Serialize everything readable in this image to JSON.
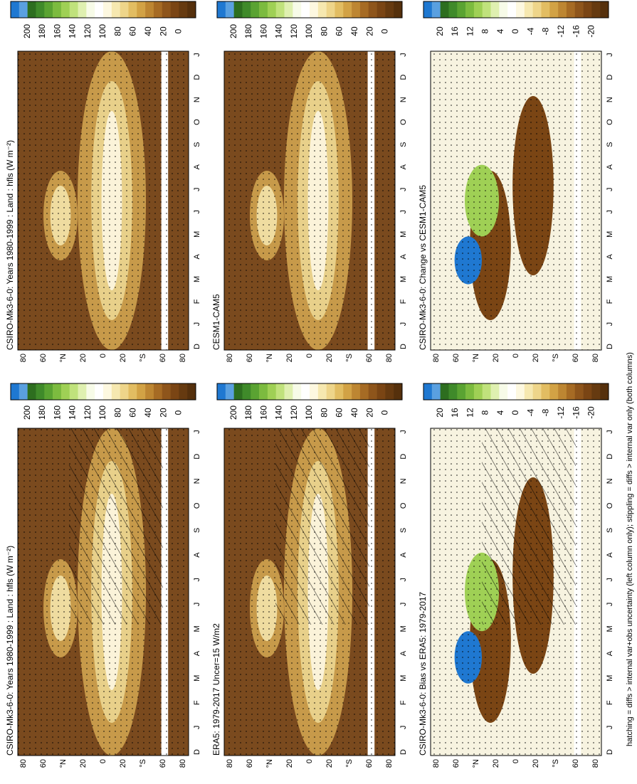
{
  "months": [
    "D",
    "J",
    "F",
    "M",
    "A",
    "M",
    "J",
    "J",
    "A",
    "S",
    "O",
    "N",
    "D",
    "J"
  ],
  "lat_labels": [
    80,
    60,
    "°N",
    20,
    0,
    20,
    "°S",
    60,
    80
  ],
  "footnote": "hatching = diffs > internal var+obs uncertainty (left column only); stippling = diffs > internal var only (both columns)",
  "panels": [
    {
      "title": "CSIRO-Mk3-6-0: Years 1980-1999 : Land : hfls (W m⁻²)",
      "colorbar_labels": [
        200,
        180,
        160,
        140,
        120,
        100,
        80,
        60,
        40,
        20,
        0
      ]
    },
    {
      "title": "CSIRO-Mk3-6-0: Years 1980-1999 : Land : hfls (W m⁻²)",
      "colorbar_labels": [
        200,
        180,
        160,
        140,
        120,
        100,
        80,
        60,
        40,
        20,
        0
      ]
    },
    {
      "title": "ERA5: 1979-2017 Uncer=15 W/m2",
      "colorbar_labels": [
        200,
        180,
        160,
        140,
        120,
        100,
        80,
        60,
        40,
        20,
        0
      ]
    },
    {
      "title": "CESM1-CAM5",
      "colorbar_labels": [
        200,
        180,
        160,
        140,
        120,
        100,
        80,
        60,
        40,
        20,
        0
      ]
    },
    {
      "title": "CSIRO-Mk3-6-0: Bias vs ERA5: 1979-2017",
      "colorbar_labels": [
        20,
        16,
        12,
        8,
        4,
        0,
        -4,
        -8,
        -12,
        -16,
        -20
      ]
    },
    {
      "title": "CSIRO-Mk3-6-0: Change vs CESM1-CAM5",
      "colorbar_labels": [
        20,
        16,
        12,
        8,
        4,
        0,
        -4,
        -8,
        -12,
        -16,
        -20
      ]
    }
  ]
}
